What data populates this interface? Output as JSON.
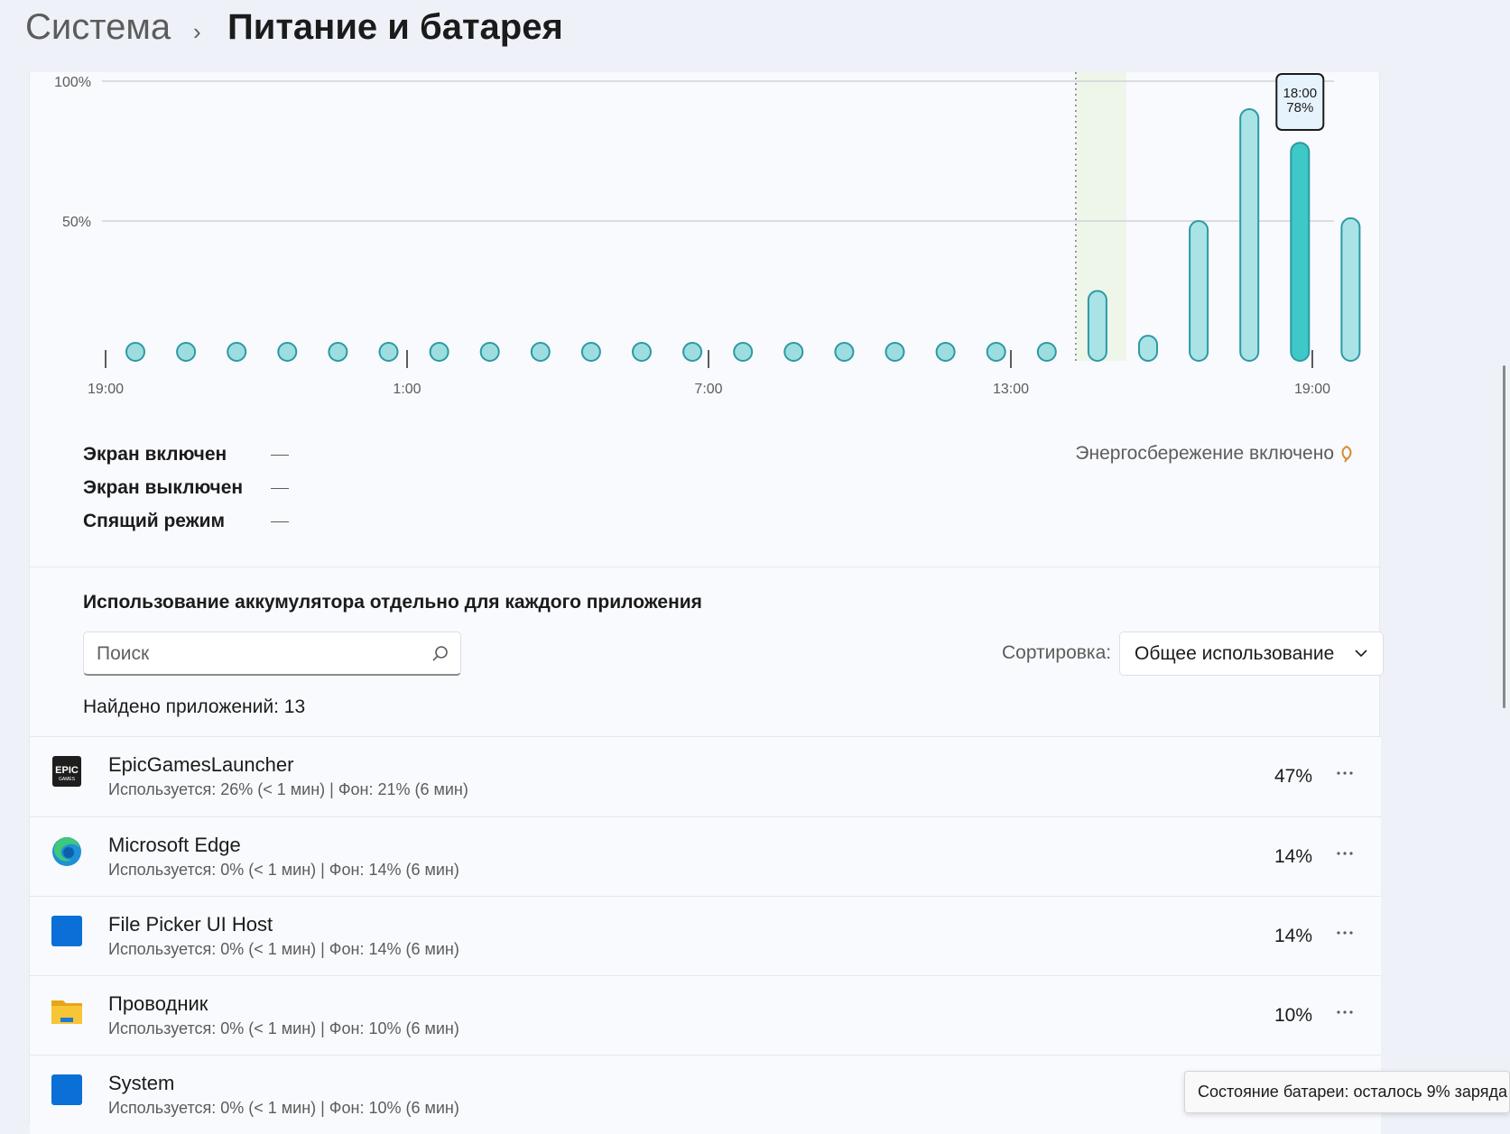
{
  "header": {
    "parent": "Система",
    "title": "Питание и батарея"
  },
  "chart_data": {
    "type": "bar",
    "y_ticks": [
      "100%",
      "50%"
    ],
    "ylim": [
      0,
      100
    ],
    "x_tick_labels": [
      "19:00",
      "1:00",
      "7:00",
      "13:00",
      "19:00"
    ],
    "values": [
      0,
      0,
      0,
      0,
      0,
      0,
      0,
      0,
      0,
      0,
      0,
      0,
      0,
      0,
      0,
      0,
      0,
      0,
      0,
      25,
      9,
      50,
      90,
      78,
      51
    ],
    "selected_index": 23,
    "charge_marker_index": 19,
    "tooltip": {
      "time": "18:00",
      "value": "78%"
    },
    "colors": {
      "bar": "#a9e3e6",
      "bar_stroke": "#2b9aa5",
      "selected": "#3ec8c7",
      "dot": "#9ddde0"
    }
  },
  "legend": {
    "screen_on": "Экран включен",
    "screen_off": "Экран выключен",
    "sleep": "Спящий режим",
    "saver": "Энергосбережение включено"
  },
  "apps_section": {
    "title": "Использование аккумулятора отдельно для каждого приложения",
    "search_placeholder": "Поиск",
    "sort_label": "Сортировка:",
    "sort_value": "Общее использование",
    "found": "Найдено приложений: 13"
  },
  "apps": [
    {
      "name": "EpicGamesLauncher",
      "detail": "Используется: 26% (< 1 мин) | Фон: 21% (6 мин)",
      "percent": "47%",
      "icon": "epic-games-icon",
      "logo_text": "EPIC",
      "logo_sub": "GAMES"
    },
    {
      "name": "Microsoft Edge",
      "detail": "Используется: 0% (< 1 мин) | Фон: 14% (6 мин)",
      "percent": "14%",
      "icon": "edge-icon"
    },
    {
      "name": "File Picker UI Host",
      "detail": "Используется: 0% (< 1 мин) | Фон: 14% (6 мин)",
      "percent": "14%",
      "icon": "blue-square-icon"
    },
    {
      "name": "Проводник",
      "detail": "Используется: 0% (< 1 мин) | Фон: 10% (6 мин)",
      "percent": "10%",
      "icon": "folder-icon"
    },
    {
      "name": "System",
      "detail": "Используется: 0% (< 1 мин) | Фон: 10% (6 мин)",
      "percent": "",
      "icon": "blue-square-icon"
    }
  ],
  "tooltip_bottom": "Состояние батареи: осталось 9% заряда"
}
